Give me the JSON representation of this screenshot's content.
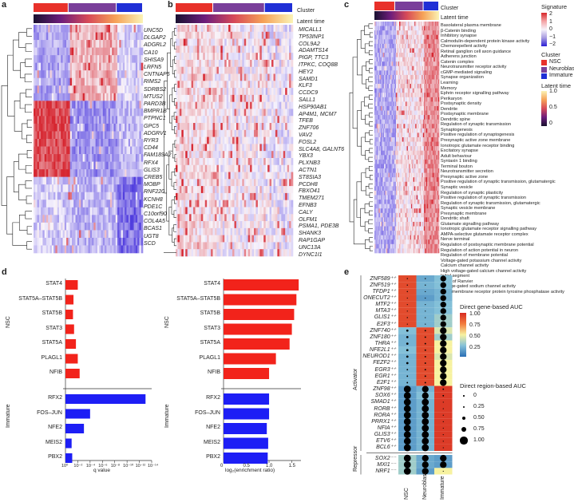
{
  "panel_labels": {
    "a": "a",
    "b": "b",
    "c": "c",
    "d": "d",
    "e": "e"
  },
  "annotation_labels": {
    "cluster": "Cluster",
    "latent_time": "Latent time"
  },
  "panel_a_genes": [
    "UNC5D",
    "DLGAP2",
    "ADGRL2",
    "CA10",
    "SHISA9",
    "LRFN5",
    "CNTNAP5",
    "RIMS2",
    "SDRBS2",
    "MTUS2",
    "PARD3B",
    "BMPR1B",
    "PTPNC1",
    "GPC5",
    "ADGRV1",
    "RYR3",
    "CD44",
    "FAM189A2",
    "RFX4",
    "GLIS3",
    "CREB5",
    "MOBP",
    "RNF220",
    "KCNH8",
    "PDE1C",
    "C10orf90",
    "COL4A5",
    "BCAS1",
    "UGT8",
    "SCD"
  ],
  "panel_b_genes": [
    "MICALL1",
    "TP53INP1",
    "COL9A2",
    "ADAMTS14",
    "PIGP, TTC3",
    "ITPKC, COQ8B",
    "HEY2",
    "SAMD1",
    "KLF3",
    "CCDC9",
    "SALL1",
    "HSP90AB1",
    "AP4M1, MCM7",
    "TFEB",
    "ZNF706",
    "VAV2",
    "FOSL2",
    "SLC4A8, GALNT6",
    "YBX3",
    "PLXNB3",
    "ACTN1",
    "ST8SIA3",
    "PCDH8",
    "FBXO41",
    "TMEM271",
    "EFNB3",
    "CALY",
    "OLFM1",
    "PSMA1, PDE3B",
    "SHANK3",
    "RAP1GAP",
    "UNC13A",
    "DYNC1I1"
  ],
  "panel_c_terms": [
    "Basolateral plasma membrane",
    "β-Catenin binding",
    "Inhibitory synapse",
    "Calmodulin-dependent protein kinase activity",
    "Chemorepellent activity",
    "Retinal ganglion cell axon guidance",
    "Adherens junction",
    "Catenin complex",
    "Neurotransmitter receptor activity",
    "cGMP-mediated signaling",
    "Synapse organization",
    "Learning",
    "Memory",
    "Ephrin receptor signalling pathway",
    "Perikaryon",
    "Postsynaptic density",
    "Dendrite",
    "Postsynaptic membrane",
    "Dendritic spine",
    "Regulation of synaptic transmission",
    "Synaptogenesis",
    "Positive regulation of synaptogenesis",
    "Presynaptic active zone membrane",
    "Ionotropic glutamate receptor binding",
    "Excitatory synapse",
    "Adult behaviour",
    "Syntaxin 1 binding",
    "Terminal bouton",
    "Neurotransmitter secretion",
    "Presynaptic active zone",
    "Positive regulation of synaptic transmission, glutamatergic",
    "Synaptic vesicle",
    "Regulation of synaptic plasticity",
    "Positive regulation of synaptic transmission",
    "Regulation of synaptic transmission, glutamatergic",
    "Synaptic vesicle membrane",
    "Presynaptic membrane",
    "Dendritic shaft",
    "Glutamate signalling pathway",
    "Ionotropic glutamate receptor signalling pathway",
    "AMPA-selective glutamate receptor complex",
    "Nerve terminal",
    "Regulation of postsynaptic membrane potential",
    "Regulation of action potential in neuron",
    "Regulation of membrane potential",
    "Voltage-gated potassium channel activity",
    "Calcium channel activity",
    "High voltage-gated calcium channel activity",
    "Initial segment",
    "Node of Ranvier",
    "Voltage-gated sodium channel activity",
    "Transmembrane receptor protein tyrosine phosphatase activity"
  ],
  "legend_c": {
    "signature_title": "Signature",
    "signature_ticks": [
      "2",
      "1",
      "0",
      "−1",
      "−2"
    ],
    "cluster_title": "Cluster",
    "cluster_items": [
      {
        "name": "NSC",
        "color": "#e8312a"
      },
      {
        "name": "Neuroblast",
        "color": "#7a3f9a"
      },
      {
        "name": "Immature",
        "color": "#1f2fd6"
      }
    ],
    "latent_title": "Latent time",
    "latent_ticks": [
      "1.0",
      "0.5",
      "0"
    ]
  },
  "panel_d": {
    "group_labels": {
      "nsc": "NSC",
      "immature": "Immature"
    },
    "left_xlabel": "q value",
    "left_ticks": [
      "10⁰",
      "10⁻²",
      "10⁻⁴",
      "10⁻⁶",
      "10⁻⁸",
      "10⁻¹⁰",
      "10⁻¹²",
      "10⁻¹⁴"
    ],
    "right_xlabel": "log₂(enrichment ratio)",
    "right_ticks": [
      "0",
      "0.5",
      "1.0",
      "1.5"
    ],
    "nsc_factors": [
      "STAT4",
      "STAT5A–STAT5B",
      "STAT5B",
      "STAT3",
      "STAT5A",
      "PLAGL1",
      "NFIB"
    ],
    "immature_factors": [
      "RFX2",
      "FOS–JUN",
      "NFE2",
      "MEIS2",
      "PBX2"
    ],
    "nsc_color": "#f2231b",
    "immature_color": "#1d1ef5"
  },
  "chart_data": [
    {
      "type": "bar",
      "orientation": "horizontal",
      "xlabel": "q value",
      "xscale": "log (reversed)",
      "categories": [
        "STAT4",
        "STAT5A–STAT5B",
        "STAT5B",
        "STAT3",
        "STAT5A",
        "PLAGL1",
        "NFIB",
        "RFX2",
        "FOS–JUN",
        "NFE2",
        "MEIS2",
        "PBX2"
      ],
      "series": [
        {
          "values": [
            0.01,
            0.05,
            0.06,
            0.04,
            0.02,
            0.01,
            0.005,
            1e-13,
            0.0001,
            0.001,
            0.1,
            0.08
          ]
        }
      ]
    },
    {
      "type": "bar",
      "orientation": "horizontal",
      "xlabel": "log₂(enrichment ratio)",
      "xlim": [
        0,
        1.7
      ],
      "categories": [
        "STAT4",
        "STAT5A–STAT5B",
        "STAT5B",
        "STAT3",
        "STAT5A",
        "PLAGL1",
        "NFIB",
        "RFX2",
        "FOS–JUN",
        "NFE2",
        "MEIS2",
        "PBX2"
      ],
      "series": [
        {
          "values": [
            1.65,
            1.6,
            1.55,
            1.5,
            1.45,
            1.15,
            1.0,
            1.0,
            1.0,
            0.95,
            0.98,
            0.97
          ]
        }
      ]
    }
  ],
  "panel_e": {
    "group_labels": {
      "activator": "Activator",
      "repressor": "Repressor"
    },
    "columns": [
      "NSC",
      "Neuroblast",
      "Immature"
    ],
    "activators": [
      "ZNF589⁺⁺",
      "ZNF519⁺⁺",
      "TFDP1⁺⁺",
      "ONECUT2⁺⁺",
      "MTF2⁺⁺",
      "MTA3⁺⁺",
      "GLIS1⁺⁺",
      "E2F3⁺⁺",
      "ZNF740⁺⁺",
      "ZNF180⁺⁺",
      "THRA⁺⁺",
      "NFE2L1⁺⁺",
      "NEUROD1⁺⁺",
      "FEZF2⁺⁺",
      "EGR3⁺⁺",
      "EGR1⁺⁺",
      "E2F1⁺⁺",
      "ZNF98⁺⁺",
      "SOX6⁺⁺",
      "SMAD1⁺⁺",
      "RORB⁺⁺",
      "RORA⁺⁺",
      "PRRX1⁺⁺",
      "NFIA⁺⁺",
      "GLIS3⁺⁺",
      "ETV6⁺⁺",
      "BCL6⁺⁺"
    ],
    "repressors": [
      "SOX2⁻⁻",
      "MXI1⁻⁻",
      "NRF1⁻⁻"
    ],
    "auc_title": "Direct gene-based AUC",
    "auc_ticks": [
      "1.00",
      "0.75",
      "0.50",
      "0.25"
    ],
    "size_title": "Direct region-based AUC",
    "size_ticks": [
      "0",
      "0.25",
      "0.50",
      "0.75",
      "1.00"
    ]
  }
}
